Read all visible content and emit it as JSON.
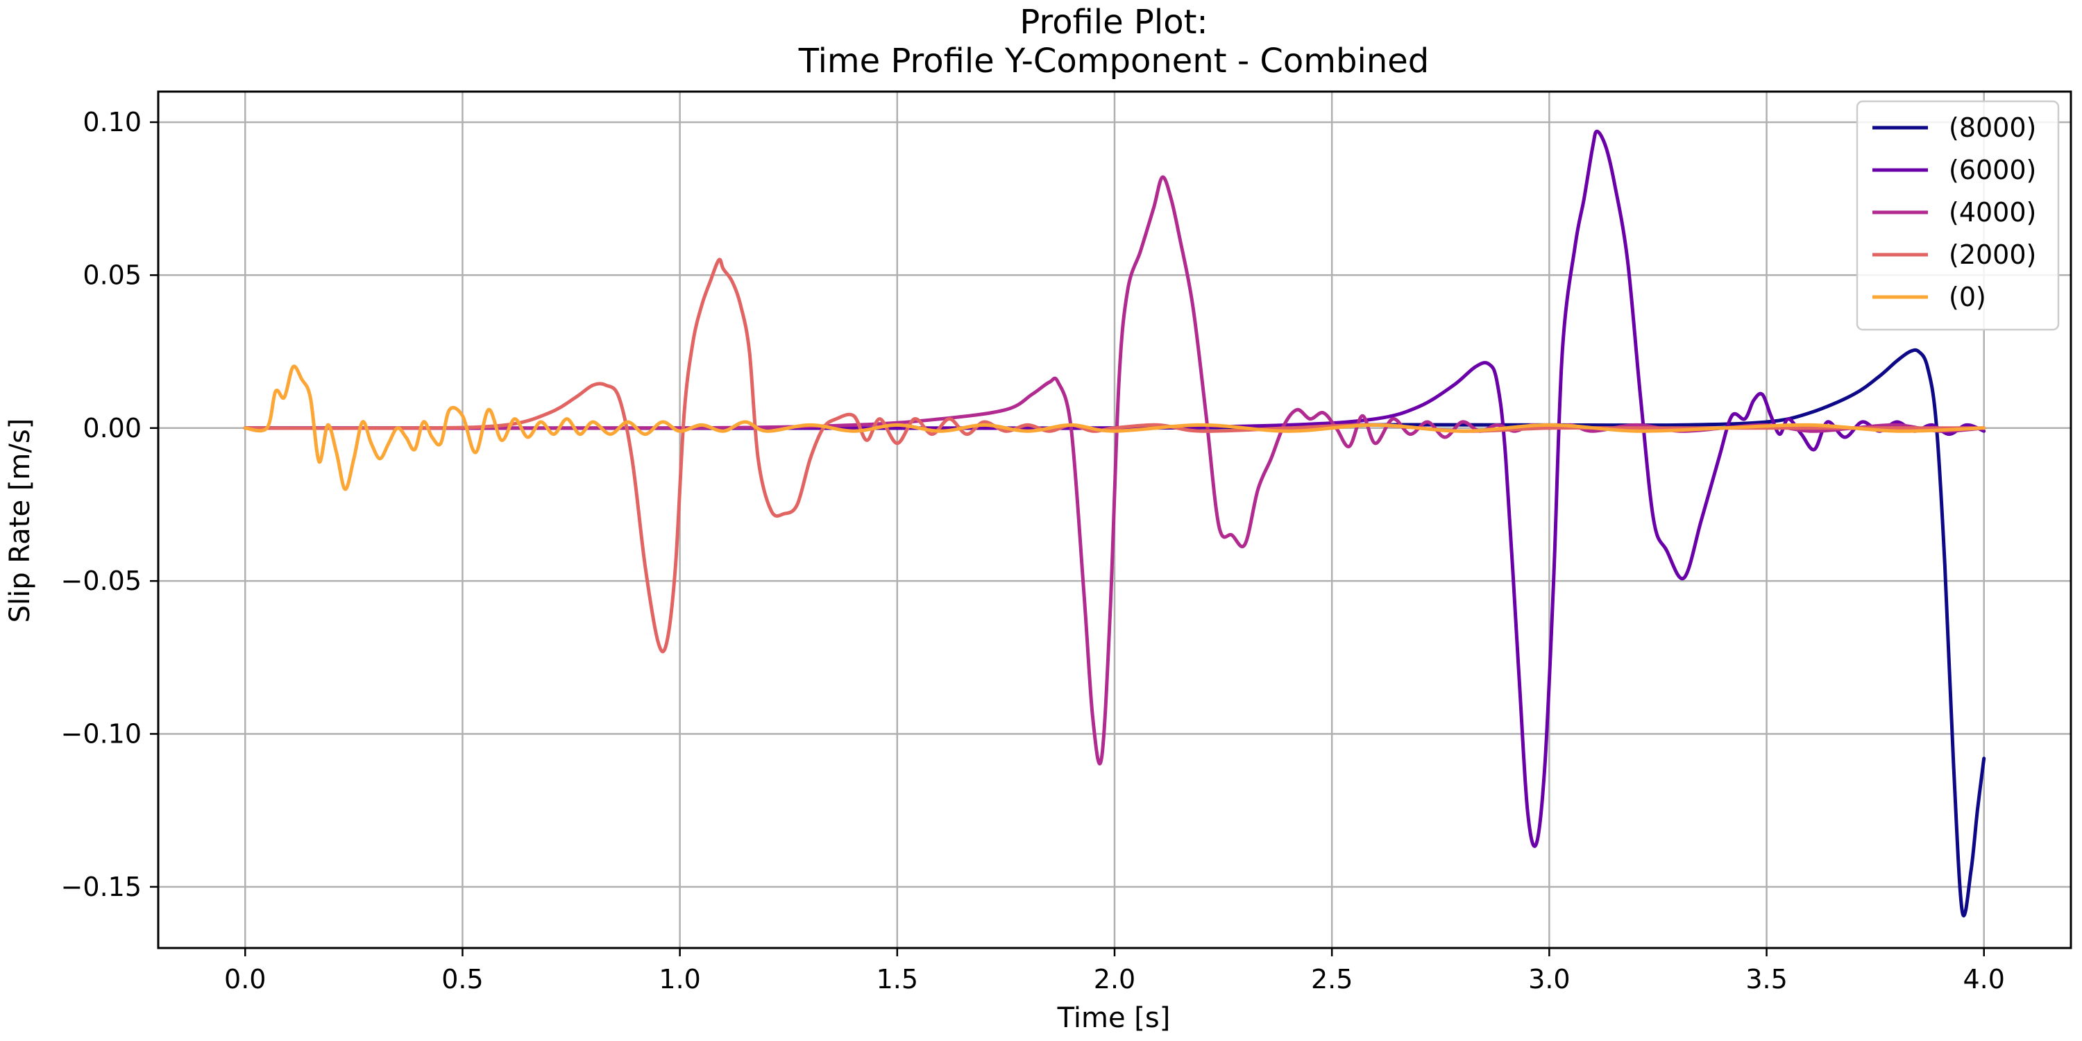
{
  "chart_data": {
    "type": "line",
    "title": "Profile Plot:",
    "subtitle": "Time Profile Y-Component - Combined",
    "xlabel": "Time [s]",
    "ylabel": "Slip Rate [m/s]",
    "xlim": [
      -0.2,
      4.2
    ],
    "ylim": [
      -0.17,
      0.11
    ],
    "xticks": [
      0.0,
      0.5,
      1.0,
      1.5,
      2.0,
      2.5,
      3.0,
      3.5,
      4.0
    ],
    "xtick_labels": [
      "0.0",
      "0.5",
      "1.0",
      "1.5",
      "2.0",
      "2.5",
      "3.0",
      "3.5",
      "4.0"
    ],
    "yticks": [
      0.1,
      0.05,
      0.0,
      -0.05,
      -0.1,
      -0.15
    ],
    "ytick_labels": [
      "0.10",
      "0.05",
      "0.00",
      "−0.05",
      "−0.10",
      "−0.15"
    ],
    "grid": true,
    "legend_position": "top-right",
    "series": [
      {
        "name": "(8000)",
        "color": "#0d0887",
        "x": [
          0.0,
          2.0,
          2.5,
          3.0,
          3.3,
          3.5,
          3.6,
          3.7,
          3.76,
          3.8,
          3.83,
          3.85,
          3.87,
          3.89,
          3.91,
          3.93,
          3.95,
          3.97,
          3.985,
          4.0
        ],
        "y": [
          0.0,
          0.0,
          0.001,
          0.001,
          0.001,
          0.002,
          0.005,
          0.011,
          0.017,
          0.022,
          0.025,
          0.025,
          0.02,
          0.002,
          -0.045,
          -0.11,
          -0.158,
          -0.145,
          -0.125,
          -0.108
        ]
      },
      {
        "name": "(6000)",
        "color": "#6a00a8",
        "x": [
          0.0,
          1.5,
          2.0,
          2.4,
          2.6,
          2.7,
          2.78,
          2.83,
          2.86,
          2.88,
          2.9,
          2.93,
          2.95,
          2.97,
          2.99,
          3.01,
          3.03,
          3.06,
          3.08,
          3.1,
          3.11,
          3.13,
          3.15,
          3.18,
          3.21,
          3.24,
          3.27,
          3.31,
          3.35,
          3.39,
          3.42,
          3.45,
          3.47,
          3.49,
          3.51,
          3.53,
          3.55,
          3.58,
          3.61,
          3.64,
          3.68,
          3.72,
          3.76,
          3.8,
          3.84,
          3.88,
          3.92,
          3.96,
          4.0
        ],
        "y": [
          0.0,
          0.0,
          0.0,
          0.001,
          0.003,
          0.007,
          0.014,
          0.02,
          0.021,
          0.015,
          -0.01,
          -0.08,
          -0.125,
          -0.136,
          -0.11,
          -0.05,
          0.025,
          0.06,
          0.075,
          0.092,
          0.097,
          0.092,
          0.08,
          0.055,
          0.01,
          -0.03,
          -0.04,
          -0.049,
          -0.03,
          -0.01,
          0.004,
          0.003,
          0.009,
          0.011,
          0.004,
          -0.002,
          0.003,
          -0.002,
          -0.007,
          0.002,
          -0.003,
          0.002,
          -0.001,
          0.002,
          -0.001,
          0.001,
          -0.002,
          0.001,
          -0.001
        ]
      },
      {
        "name": "(4000)",
        "color": "#b12a90",
        "x": [
          0.0,
          1.0,
          1.4,
          1.6,
          1.75,
          1.81,
          1.85,
          1.87,
          1.9,
          1.93,
          1.95,
          1.97,
          1.99,
          2.01,
          2.03,
          2.06,
          2.09,
          2.11,
          2.13,
          2.15,
          2.18,
          2.21,
          2.24,
          2.27,
          2.3,
          2.33,
          2.36,
          2.39,
          2.42,
          2.45,
          2.48,
          2.51,
          2.54,
          2.57,
          2.6,
          2.64,
          2.68,
          2.72,
          2.76,
          2.8,
          2.84,
          2.88,
          2.92,
          2.96,
          3.0,
          3.05,
          3.1,
          3.2,
          3.3,
          3.4,
          3.5,
          3.6,
          3.7,
          3.8,
          3.9,
          4.0
        ],
        "y": [
          0.0,
          0.0,
          0.001,
          0.003,
          0.006,
          0.011,
          0.015,
          0.015,
          0.0,
          -0.055,
          -0.095,
          -0.108,
          -0.06,
          0.015,
          0.045,
          0.058,
          0.072,
          0.082,
          0.075,
          0.062,
          0.04,
          0.005,
          -0.032,
          -0.035,
          -0.038,
          -0.02,
          -0.01,
          0.001,
          0.006,
          0.003,
          0.005,
          0.0,
          -0.006,
          0.004,
          -0.005,
          0.003,
          -0.002,
          0.002,
          -0.003,
          0.002,
          -0.001,
          0.001,
          -0.001,
          0.001,
          0.0,
          0.001,
          -0.001,
          0.001,
          -0.001,
          0.0,
          0.001,
          -0.001,
          0.0,
          0.001,
          -0.001,
          0.0
        ]
      },
      {
        "name": "(2000)",
        "color": "#e16462",
        "x": [
          0.0,
          0.4,
          0.6,
          0.7,
          0.76,
          0.8,
          0.83,
          0.86,
          0.89,
          0.92,
          0.95,
          0.97,
          0.99,
          1.01,
          1.03,
          1.05,
          1.07,
          1.09,
          1.1,
          1.12,
          1.14,
          1.16,
          1.18,
          1.21,
          1.24,
          1.27,
          1.3,
          1.33,
          1.36,
          1.4,
          1.43,
          1.46,
          1.5,
          1.54,
          1.58,
          1.62,
          1.66,
          1.7,
          1.75,
          1.8,
          1.85,
          1.9,
          1.95,
          2.0,
          2.1,
          2.2,
          2.4,
          2.6,
          2.8,
          3.0,
          3.2,
          3.4,
          3.6,
          3.8,
          4.0
        ],
        "y": [
          0.0,
          0.0,
          0.001,
          0.005,
          0.01,
          0.014,
          0.014,
          0.01,
          -0.01,
          -0.045,
          -0.07,
          -0.07,
          -0.045,
          0.005,
          0.028,
          0.04,
          0.048,
          0.055,
          0.052,
          0.048,
          0.04,
          0.025,
          -0.01,
          -0.027,
          -0.028,
          -0.025,
          -0.01,
          0.0,
          0.003,
          0.004,
          -0.004,
          0.003,
          -0.005,
          0.003,
          -0.002,
          0.003,
          -0.002,
          0.002,
          -0.001,
          0.001,
          -0.001,
          0.001,
          -0.001,
          0.0,
          0.001,
          -0.001,
          0.0,
          0.001,
          -0.001,
          0.0,
          0.0,
          0.0,
          0.0,
          0.0,
          0.0
        ]
      },
      {
        "name": "(0)",
        "color": "#fca636",
        "x": [
          0.0,
          0.05,
          0.07,
          0.09,
          0.11,
          0.13,
          0.15,
          0.17,
          0.19,
          0.21,
          0.23,
          0.25,
          0.27,
          0.29,
          0.31,
          0.33,
          0.35,
          0.37,
          0.39,
          0.41,
          0.43,
          0.45,
          0.47,
          0.5,
          0.53,
          0.56,
          0.59,
          0.62,
          0.65,
          0.68,
          0.71,
          0.74,
          0.77,
          0.8,
          0.84,
          0.88,
          0.92,
          0.96,
          1.0,
          1.05,
          1.1,
          1.15,
          1.2,
          1.3,
          1.4,
          1.5,
          1.6,
          1.7,
          1.8,
          1.9,
          2.0,
          2.2,
          2.4,
          2.6,
          2.8,
          3.0,
          3.2,
          3.4,
          3.6,
          3.8,
          4.0
        ],
        "y": [
          0.0,
          0.0,
          0.012,
          0.01,
          0.02,
          0.016,
          0.01,
          -0.011,
          0.001,
          -0.008,
          -0.02,
          -0.01,
          0.002,
          -0.005,
          -0.01,
          -0.005,
          0.0,
          -0.003,
          -0.007,
          0.002,
          -0.003,
          -0.005,
          0.006,
          0.004,
          -0.008,
          0.006,
          -0.004,
          0.003,
          -0.003,
          0.002,
          -0.002,
          0.003,
          -0.002,
          0.002,
          -0.002,
          0.002,
          -0.002,
          0.002,
          -0.001,
          0.001,
          -0.001,
          0.002,
          -0.001,
          0.001,
          -0.001,
          0.001,
          -0.001,
          0.001,
          -0.001,
          0.001,
          -0.001,
          0.001,
          -0.001,
          0.001,
          -0.001,
          0.001,
          -0.001,
          0.0,
          0.001,
          -0.001,
          0.0
        ]
      }
    ]
  }
}
